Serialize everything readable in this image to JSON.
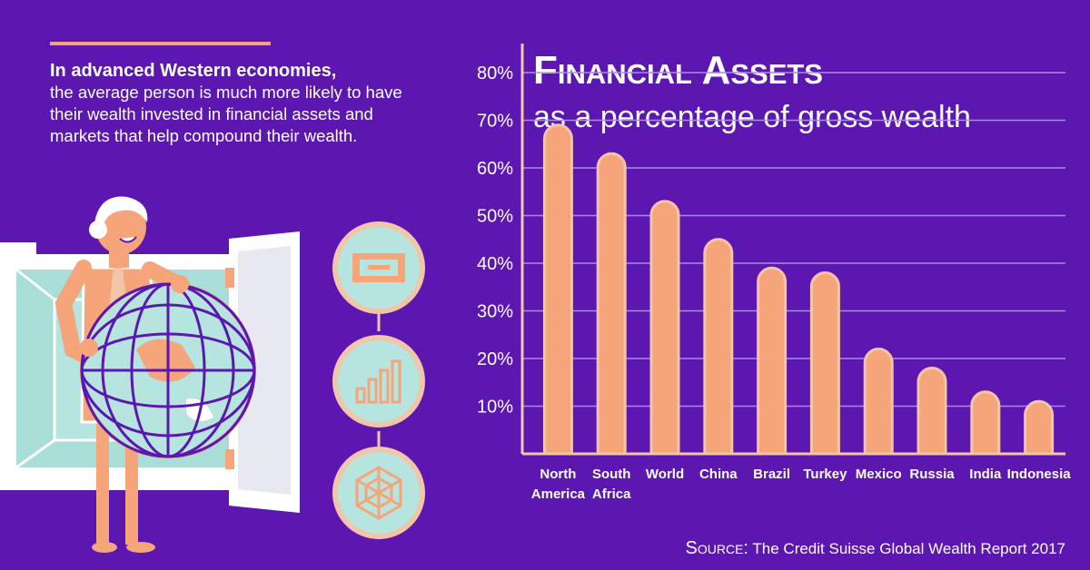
{
  "intro": {
    "lead": "In advanced Western economies,",
    "body": "the average person is much more likely to have their wealth invested in financial assets and markets that help compound their wealth."
  },
  "colors": {
    "background": "#5b17b0",
    "bar": "#f6a47a",
    "bar_outline": "#f2c5a8",
    "gridline": "#a98be0",
    "text": "#ffffff"
  },
  "icons": [
    "cash-icon",
    "bar-growth-icon",
    "network-icon"
  ],
  "chart_data": {
    "type": "bar",
    "title": "Financial Assets",
    "subtitle": "as a percentage of gross wealth",
    "categories": [
      [
        "North",
        "America"
      ],
      [
        "South",
        "Africa"
      ],
      [
        "World"
      ],
      [
        "China"
      ],
      [
        "Brazil"
      ],
      [
        "Turkey"
      ],
      [
        "Mexico"
      ],
      [
        "Russia"
      ],
      [
        "India"
      ],
      [
        "Indonesia"
      ]
    ],
    "values": [
      69,
      63,
      53,
      45,
      39,
      38,
      22,
      18,
      13,
      11
    ],
    "ylim": [
      0,
      80
    ],
    "yticks": [
      "10%",
      "20%",
      "30%",
      "40%",
      "50%",
      "60%",
      "70%",
      "80%"
    ],
    "grid": true
  },
  "source": {
    "label": "Source:",
    "text": " The Credit Suisse Global Wealth Report 2017"
  }
}
